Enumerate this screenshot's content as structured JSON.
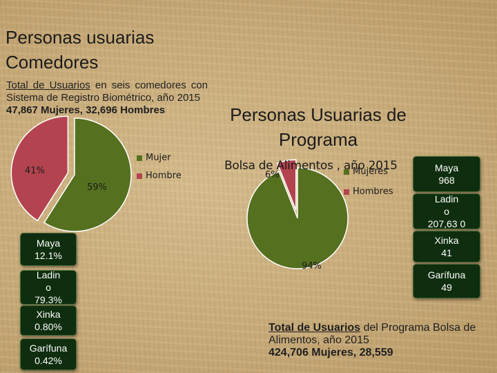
{
  "slide_title": [
    "Personas usuarias",
    "Comedores"
  ],
  "left_summary": {
    "lead": "Total de Usuarios",
    "rest": " en seis comedores con Sistema de Registro Biométrico, año 2015",
    "figures": "47,867 Mujeres, 32,696 Hombres"
  },
  "right_title": [
    "Personas Usuarias de",
    "Programa"
  ],
  "right_subtitle": "Bolsa de Alimentos , año 2015",
  "left_ethnicity": [
    {
      "name": "Maya",
      "value": "12.1%"
    },
    {
      "name": "Ladin o",
      "value": "79.3%"
    },
    {
      "name": "Xinka",
      "value": "0.80%"
    },
    {
      "name": "Garífuna",
      "value": "0.42%"
    }
  ],
  "right_ethnicity": [
    {
      "name": "Maya",
      "value": "968"
    },
    {
      "name": "Ladin o",
      "value": "207,63 0"
    },
    {
      "name": "Xinka",
      "value": "41"
    },
    {
      "name": "Garífuna",
      "value": "49"
    }
  ],
  "right_summary": {
    "lead": "Total de Usuarios",
    "rest": " del Programa Bolsa de Alimentos, año 2015",
    "figures": "424,706 Mujeres, 28,559"
  },
  "colors": {
    "mujer": "#55701f",
    "hombre": "#b3444f",
    "box": "#0f2e0f"
  },
  "chart_data": [
    {
      "type": "pie",
      "title": "",
      "categories": [
        "Mujer",
        "Hombre"
      ],
      "values": [
        59,
        41
      ],
      "data_labels": [
        "59%",
        "41%"
      ],
      "legend": [
        "Mujer",
        "Hombre"
      ],
      "legend_position": "right"
    },
    {
      "type": "pie",
      "title": "",
      "categories": [
        "Mujeres",
        "Hombres"
      ],
      "values": [
        94,
        6
      ],
      "data_labels": [
        "94%",
        "6%"
      ],
      "legend": [
        "Mujeres",
        "Hombres"
      ],
      "legend_position": "right"
    }
  ]
}
